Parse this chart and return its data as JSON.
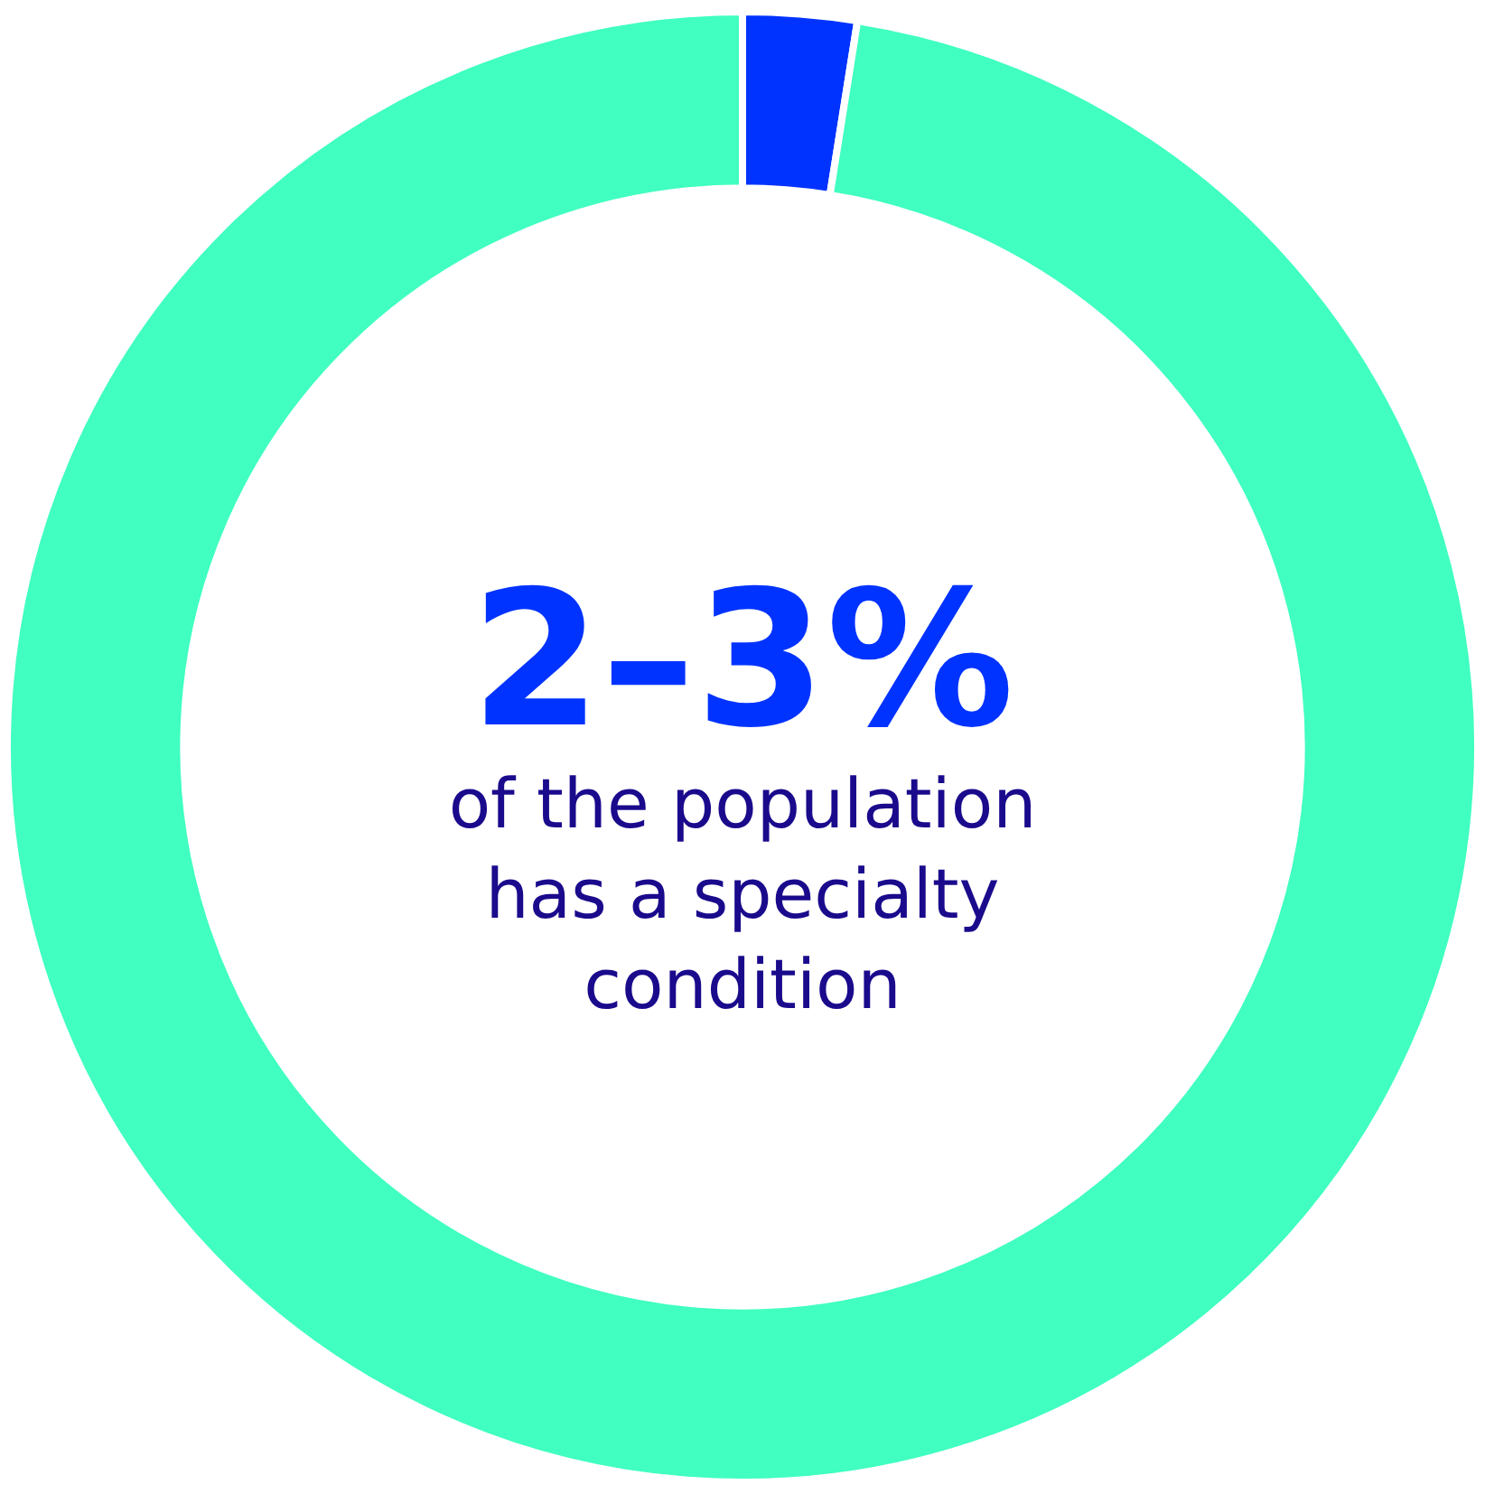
{
  "chart_data": {
    "type": "donut",
    "title": "2–3%",
    "subtitle": "of the population has a specialty condition",
    "categories": [
      null,
      null
    ],
    "values": [
      2.5,
      97.5
    ],
    "colors": [
      "#0033ff",
      "#40ffc0"
    ],
    "legend": false
  }
}
